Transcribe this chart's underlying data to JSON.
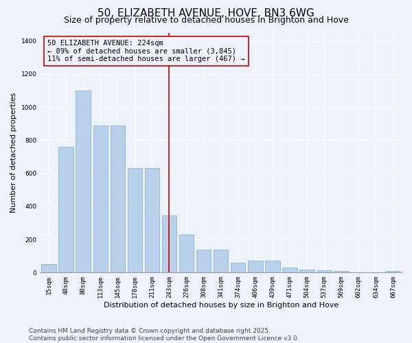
{
  "title": "50, ELIZABETH AVENUE, HOVE, BN3 6WG",
  "subtitle": "Size of property relative to detached houses in Brighton and Hove",
  "xlabel": "Distribution of detached houses by size in Brighton and Hove",
  "ylabel": "Number of detached properties",
  "categories": [
    "15sqm",
    "48sqm",
    "80sqm",
    "113sqm",
    "145sqm",
    "178sqm",
    "211sqm",
    "243sqm",
    "276sqm",
    "308sqm",
    "341sqm",
    "374sqm",
    "406sqm",
    "439sqm",
    "471sqm",
    "504sqm",
    "537sqm",
    "569sqm",
    "602sqm",
    "634sqm",
    "667sqm"
  ],
  "values": [
    50,
    760,
    1100,
    890,
    890,
    630,
    630,
    345,
    230,
    140,
    140,
    60,
    70,
    70,
    30,
    20,
    15,
    10,
    2,
    2,
    8
  ],
  "bar_color": "#b8d0ea",
  "bar_edge_color": "#7aadd4",
  "vline_color": "#cc0000",
  "annotation_text": "50 ELIZABETH AVENUE: 224sqm\n← 89% of detached houses are smaller (3,845)\n11% of semi-detached houses are larger (467) →",
  "ylim": [
    0,
    1450
  ],
  "yticks": [
    0,
    200,
    400,
    600,
    800,
    1000,
    1200,
    1400
  ],
  "background_color": "#eef2fb",
  "grid_color": "#ffffff",
  "footer_text": "Contains HM Land Registry data © Crown copyright and database right 2025.\nContains public sector information licensed under the Open Government Licence v3.0.",
  "title_fontsize": 11,
  "subtitle_fontsize": 9,
  "xlabel_fontsize": 8,
  "ylabel_fontsize": 8,
  "tick_fontsize": 6.5,
  "annotation_fontsize": 7.5,
  "footer_fontsize": 6.5
}
